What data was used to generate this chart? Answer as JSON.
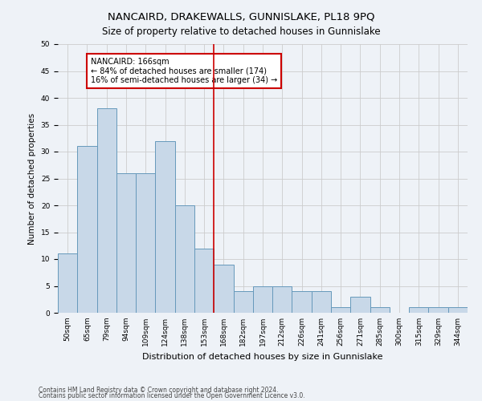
{
  "title": "NANCAIRD, DRAKEWALLS, GUNNISLAKE, PL18 9PQ",
  "subtitle": "Size of property relative to detached houses in Gunnislake",
  "xlabel": "Distribution of detached houses by size in Gunnislake",
  "ylabel": "Number of detached properties",
  "categories": [
    "50sqm",
    "65sqm",
    "79sqm",
    "94sqm",
    "109sqm",
    "124sqm",
    "138sqm",
    "153sqm",
    "168sqm",
    "182sqm",
    "197sqm",
    "212sqm",
    "226sqm",
    "241sqm",
    "256sqm",
    "271sqm",
    "285sqm",
    "300sqm",
    "315sqm",
    "329sqm",
    "344sqm"
  ],
  "values": [
    11,
    31,
    38,
    26,
    26,
    32,
    20,
    12,
    9,
    4,
    5,
    5,
    4,
    4,
    1,
    3,
    1,
    0,
    1,
    1,
    1
  ],
  "bar_color": "#c8d8e8",
  "bar_edge_color": "#6699bb",
  "grid_color": "#cccccc",
  "background_color": "#eef2f7",
  "annotation_text": "NANCAIRD: 166sqm\n← 84% of detached houses are smaller (174)\n16% of semi-detached houses are larger (34) →",
  "annotation_box_color": "#ffffff",
  "annotation_box_edge_color": "#cc0000",
  "vline_color": "#cc0000",
  "vline_x": 7.5,
  "ylim": [
    0,
    50
  ],
  "yticks": [
    0,
    5,
    10,
    15,
    20,
    25,
    30,
    35,
    40,
    45,
    50
  ],
  "footer1": "Contains HM Land Registry data © Crown copyright and database right 2024.",
  "footer2": "Contains public sector information licensed under the Open Government Licence v3.0.",
  "title_fontsize": 9.5,
  "subtitle_fontsize": 8.5,
  "xlabel_fontsize": 8,
  "ylabel_fontsize": 7.5,
  "tick_fontsize": 6.5,
  "annotation_fontsize": 7,
  "footer_fontsize": 5.5
}
